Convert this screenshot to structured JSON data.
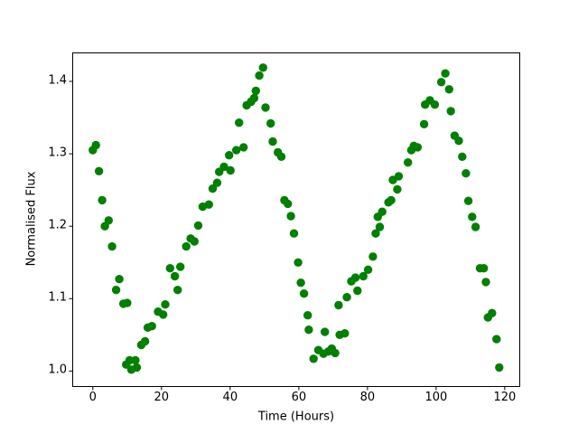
{
  "figure": {
    "background": "#ffffff",
    "title": ""
  },
  "chart_data": {
    "type": "scatter",
    "title": "",
    "xlabel": "Time (Hours)",
    "ylabel": "Normalised Flux",
    "xlim": [
      -6.0,
      124.5
    ],
    "ylim": [
      0.978,
      1.44
    ],
    "grid": false,
    "legend": "none",
    "xticks": {
      "values": [
        0,
        20,
        40,
        60,
        80,
        100,
        120
      ],
      "labels": [
        "0",
        "20",
        "40",
        "60",
        "80",
        "100",
        "120"
      ]
    },
    "yticks": {
      "values": [
        1.0,
        1.1,
        1.2,
        1.3,
        1.4
      ],
      "labels": [
        "1.0",
        "1.1",
        "1.2",
        "1.3",
        "1.4"
      ]
    },
    "marker": {
      "shape": "circle",
      "color": "#008000",
      "radius_px": 4.7
    },
    "points": [
      [
        0.0,
        1.305
      ],
      [
        0.9,
        1.312
      ],
      [
        1.8,
        1.276
      ],
      [
        2.7,
        1.236
      ],
      [
        3.5,
        1.2
      ],
      [
        4.6,
        1.208
      ],
      [
        5.6,
        1.172
      ],
      [
        6.8,
        1.112
      ],
      [
        7.7,
        1.127
      ],
      [
        8.9,
        1.093
      ],
      [
        9.7,
        1.009
      ],
      [
        10.0,
        1.094
      ],
      [
        10.7,
        1.015
      ],
      [
        11.2,
        1.002
      ],
      [
        12.4,
        1.015
      ],
      [
        12.8,
        1.005
      ],
      [
        14.1,
        1.036
      ],
      [
        15.2,
        1.041
      ],
      [
        16.0,
        1.06
      ],
      [
        17.2,
        1.062
      ],
      [
        19.0,
        1.082
      ],
      [
        20.5,
        1.078
      ],
      [
        21.1,
        1.092
      ],
      [
        22.5,
        1.142
      ],
      [
        23.9,
        1.131
      ],
      [
        24.7,
        1.112
      ],
      [
        25.5,
        1.144
      ],
      [
        27.2,
        1.172
      ],
      [
        28.5,
        1.183
      ],
      [
        29.6,
        1.179
      ],
      [
        30.7,
        1.201
      ],
      [
        32.0,
        1.227
      ],
      [
        33.8,
        1.23
      ],
      [
        34.9,
        1.252
      ],
      [
        36.2,
        1.26
      ],
      [
        36.8,
        1.275
      ],
      [
        38.2,
        1.282
      ],
      [
        39.7,
        1.298
      ],
      [
        40.1,
        1.277
      ],
      [
        41.8,
        1.305
      ],
      [
        42.6,
        1.343
      ],
      [
        43.9,
        1.309
      ],
      [
        44.8,
        1.367
      ],
      [
        46.1,
        1.372
      ],
      [
        47.0,
        1.377
      ],
      [
        47.5,
        1.387
      ],
      [
        48.5,
        1.408
      ],
      [
        49.6,
        1.419
      ],
      [
        50.3,
        1.364
      ],
      [
        51.8,
        1.342
      ],
      [
        52.4,
        1.317
      ],
      [
        53.9,
        1.302
      ],
      [
        54.9,
        1.296
      ],
      [
        55.8,
        1.236
      ],
      [
        56.8,
        1.231
      ],
      [
        57.7,
        1.214
      ],
      [
        58.6,
        1.19
      ],
      [
        59.8,
        1.15
      ],
      [
        60.6,
        1.122
      ],
      [
        61.5,
        1.107
      ],
      [
        62.6,
        1.077
      ],
      [
        62.9,
        1.057
      ],
      [
        64.3,
        1.017
      ],
      [
        65.7,
        1.029
      ],
      [
        67.2,
        1.024
      ],
      [
        67.6,
        1.054
      ],
      [
        68.6,
        1.027
      ],
      [
        69.6,
        1.031
      ],
      [
        70.6,
        1.025
      ],
      [
        71.6,
        1.091
      ],
      [
        71.9,
        1.05
      ],
      [
        73.4,
        1.052
      ],
      [
        74.0,
        1.102
      ],
      [
        75.3,
        1.124
      ],
      [
        76.5,
        1.129
      ],
      [
        77.1,
        1.111
      ],
      [
        78.8,
        1.131
      ],
      [
        80.2,
        1.14
      ],
      [
        81.6,
        1.158
      ],
      [
        82.4,
        1.19
      ],
      [
        83.0,
        1.213
      ],
      [
        83.6,
        1.199
      ],
      [
        84.3,
        1.22
      ],
      [
        86.1,
        1.233
      ],
      [
        86.9,
        1.236
      ],
      [
        87.4,
        1.264
      ],
      [
        88.7,
        1.251
      ],
      [
        89.1,
        1.269
      ],
      [
        91.8,
        1.288
      ],
      [
        92.8,
        1.305
      ],
      [
        93.5,
        1.311
      ],
      [
        94.6,
        1.309
      ],
      [
        96.5,
        1.341
      ],
      [
        96.8,
        1.368
      ],
      [
        98.2,
        1.374
      ],
      [
        99.6,
        1.368
      ],
      [
        101.5,
        1.399
      ],
      [
        102.7,
        1.411
      ],
      [
        103.8,
        1.389
      ],
      [
        104.3,
        1.359
      ],
      [
        105.4,
        1.325
      ],
      [
        106.6,
        1.318
      ],
      [
        107.6,
        1.296
      ],
      [
        108.7,
        1.273
      ],
      [
        109.4,
        1.235
      ],
      [
        110.5,
        1.213
      ],
      [
        111.5,
        1.199
      ],
      [
        112.8,
        1.142
      ],
      [
        113.9,
        1.142
      ],
      [
        114.5,
        1.123
      ],
      [
        115.1,
        1.074
      ],
      [
        116.3,
        1.08
      ],
      [
        117.6,
        1.044
      ],
      [
        118.4,
        1.005
      ]
    ]
  }
}
